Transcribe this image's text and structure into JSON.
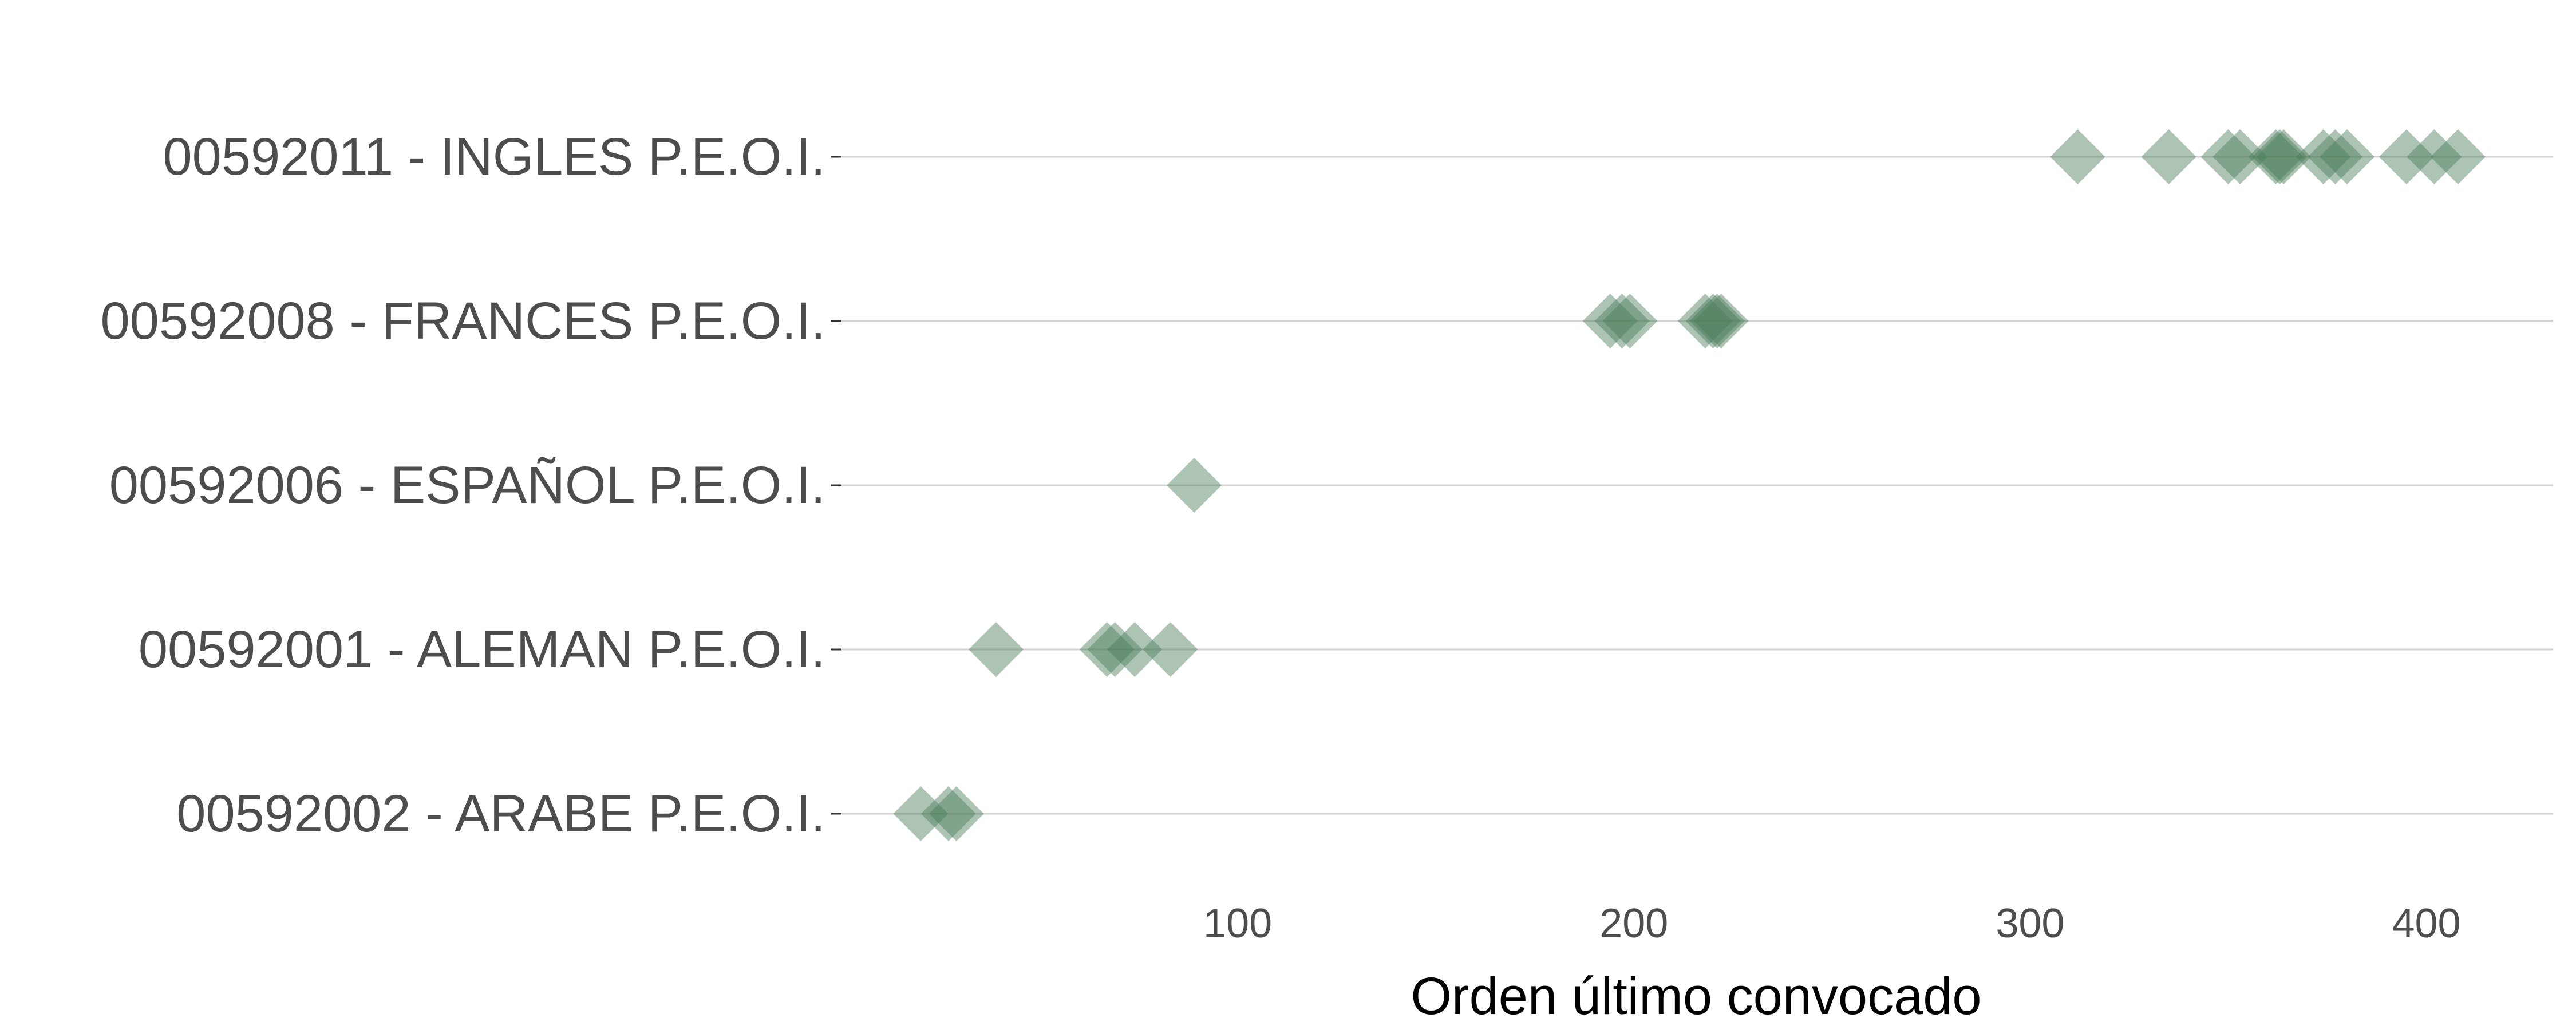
{
  "chart_data": {
    "type": "scatter",
    "title": "",
    "xlabel": "Orden último convocado",
    "ylabel": "",
    "xlim": [
      0,
      432
    ],
    "xticks": [
      100,
      200,
      300,
      400
    ],
    "grid": "horizontal only",
    "legend": "none",
    "marker": "diamond",
    "marker_color": "#4a7c59",
    "marker_opacity": 0.45,
    "categories": [
      "00592011 - INGLES P.E.O.I.",
      "00592008 - FRANCES P.E.O.I.",
      "00592006 - ESPAÑOL P.E.O.I.",
      "00592001 - ALEMAN P.E.O.I.",
      "00592002 - ARABE P.E.O.I."
    ],
    "points": [
      {
        "category": "00592011 - INGLES P.E.O.I.",
        "x": [
          312,
          335,
          350,
          353,
          362,
          363,
          364,
          374,
          377,
          380,
          395,
          402,
          408
        ]
      },
      {
        "category": "00592008 - FRANCES P.E.O.I.",
        "x": [
          194,
          197,
          199,
          218,
          220,
          221,
          222
        ]
      },
      {
        "category": "00592006 - ESPAÑOL P.E.O.I.",
        "x": [
          89
        ]
      },
      {
        "category": "00592001 - ALEMAN P.E.O.I.",
        "x": [
          39,
          67,
          69,
          74,
          83
        ]
      },
      {
        "category": "00592002 - ARABE P.E.O.I.",
        "x": [
          20,
          27,
          29
        ]
      }
    ]
  }
}
